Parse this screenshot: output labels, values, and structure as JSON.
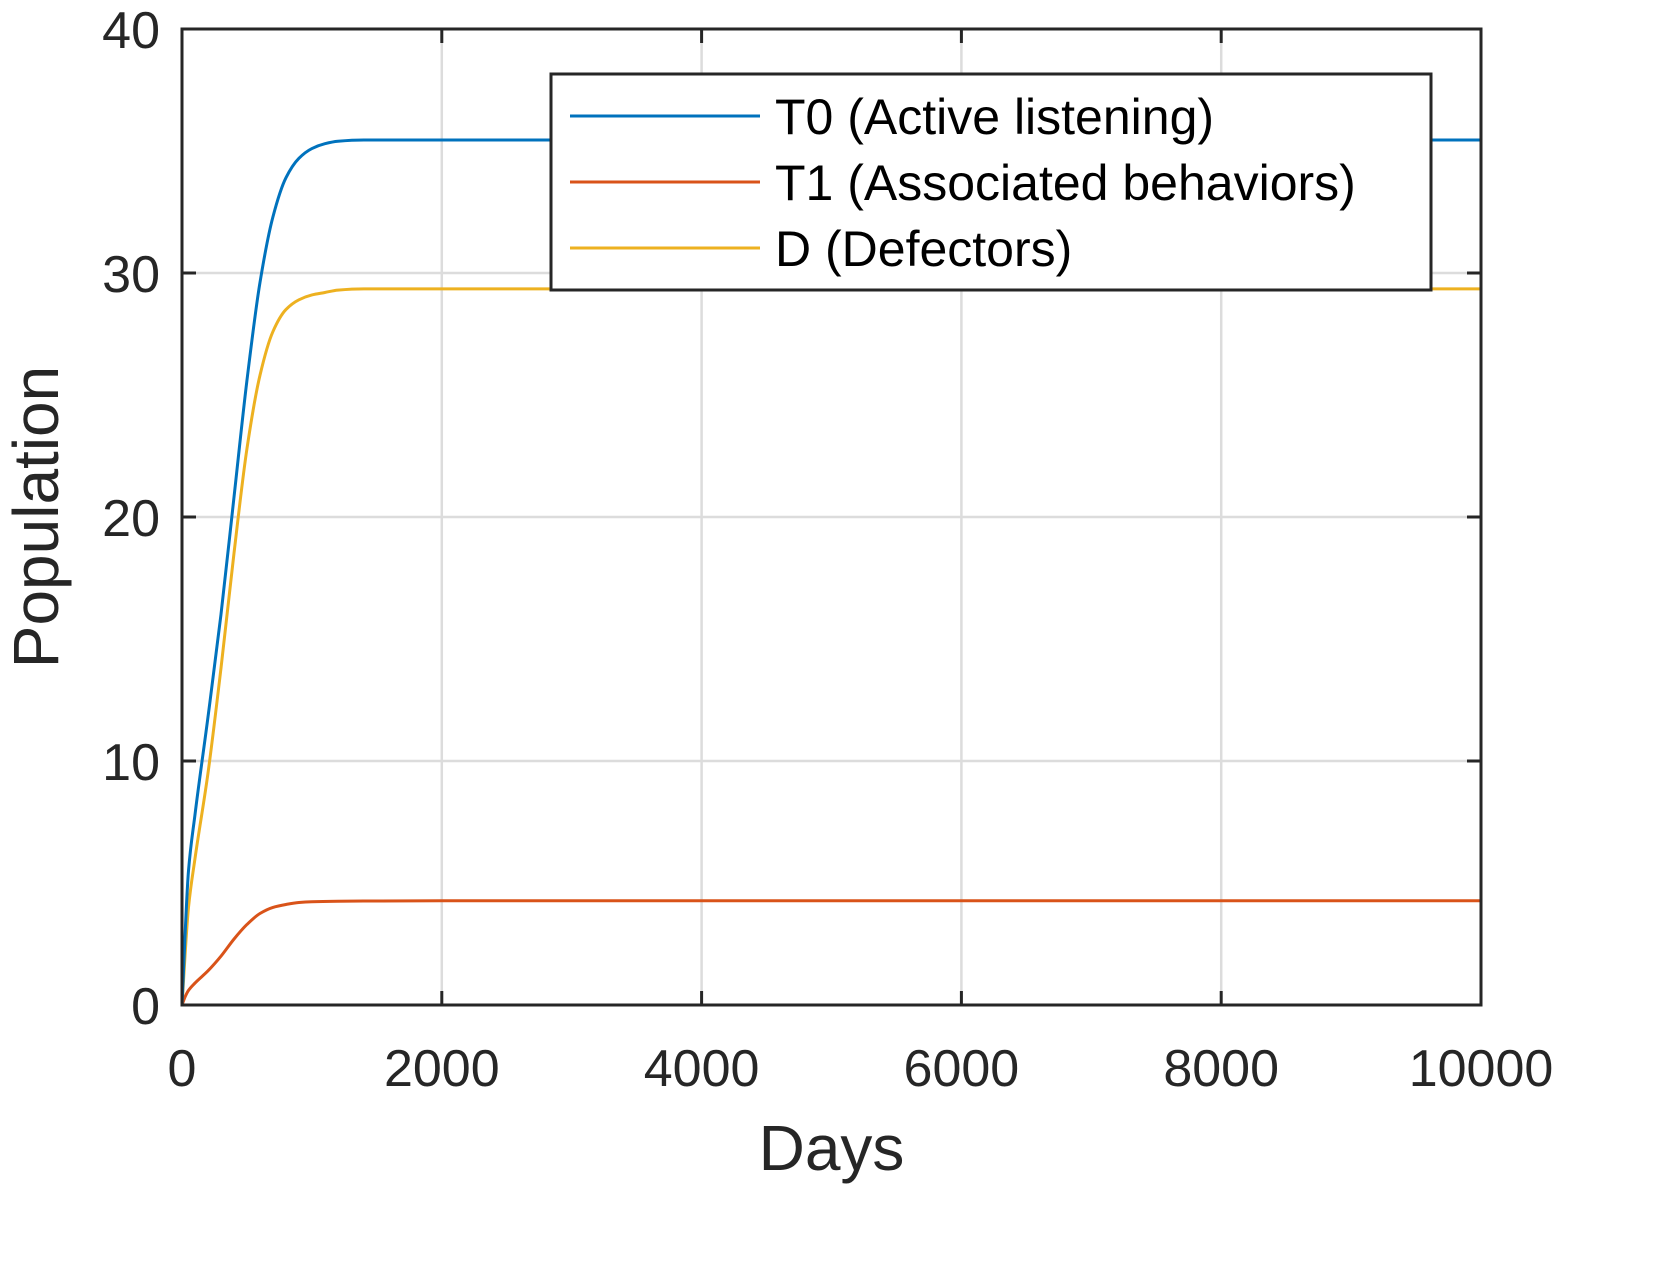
{
  "chart_data": {
    "type": "line",
    "xlabel": "Days",
    "ylabel": "Population",
    "xlim": [
      0,
      10000
    ],
    "ylim": [
      0,
      40
    ],
    "xticks": [
      0,
      2000,
      4000,
      6000,
      8000,
      10000
    ],
    "yticks": [
      0,
      10,
      20,
      30,
      40
    ],
    "xtick_labels": [
      "0",
      "2000",
      "4000",
      "6000",
      "8000",
      "10000"
    ],
    "ytick_labels": [
      "0",
      "10",
      "20",
      "30",
      "40"
    ],
    "grid": true,
    "legend_position": "top-right",
    "series": [
      {
        "name": "T0 (Active listening)",
        "color": "#0072BD",
        "x": [
          0,
          50,
          100,
          200,
          300,
          400,
          500,
          600,
          700,
          800,
          900,
          1000,
          1100,
          1200,
          1400,
          1600,
          2000,
          3000,
          5000,
          7000,
          10000
        ],
        "y": [
          0,
          5.5,
          7.8,
          11.8,
          16.0,
          20.8,
          25.6,
          29.6,
          32.3,
          33.9,
          34.7,
          35.1,
          35.3,
          35.4,
          35.45,
          35.45,
          35.45,
          35.45,
          35.45,
          35.45,
          35.45
        ]
      },
      {
        "name": "T1 (Associated behaviors)",
        "color": "#D95319",
        "x": [
          0,
          25,
          50,
          100,
          200,
          300,
          400,
          500,
          600,
          700,
          800,
          900,
          1000,
          1200,
          1400,
          2000,
          5000,
          10000
        ],
        "y": [
          0,
          0.35,
          0.6,
          0.9,
          1.4,
          2.0,
          2.7,
          3.3,
          3.75,
          4.0,
          4.12,
          4.2,
          4.23,
          4.25,
          4.26,
          4.27,
          4.27,
          4.27
        ]
      },
      {
        "name": "D (Defectors)",
        "color": "#EDB120",
        "x": [
          0,
          50,
          100,
          200,
          300,
          400,
          500,
          600,
          700,
          800,
          900,
          1000,
          1100,
          1200,
          1400,
          1600,
          2000,
          5000,
          10000
        ],
        "y": [
          0,
          4.0,
          6.0,
          9.5,
          13.8,
          18.5,
          22.8,
          25.8,
          27.6,
          28.5,
          28.9,
          29.1,
          29.2,
          29.3,
          29.35,
          29.35,
          29.35,
          29.35,
          29.35
        ]
      }
    ]
  }
}
